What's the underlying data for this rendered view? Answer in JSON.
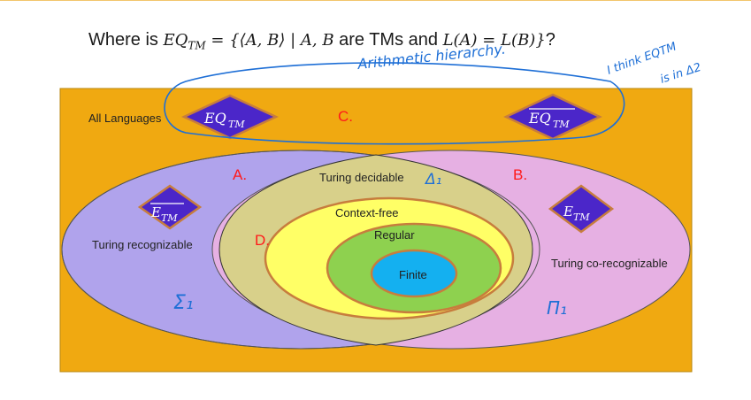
{
  "title": {
    "prefix": "Where is ",
    "math1": "EQ",
    "math1_sub": "TM",
    "math2": " = {⟨A, B⟩ | A, B",
    "mid": " are TMs and ",
    "math3": "L(A) = L(B)}",
    "suffix": "?"
  },
  "regions": {
    "all_languages": "All Languages",
    "turing_recognizable": "Turing recognizable",
    "turing_corecognizable": "Turing co-recognizable",
    "turing_decidable": "Turing decidable",
    "context_free": "Context-free",
    "regular": "Regular",
    "finite": "Finite"
  },
  "letters": {
    "a": "A.",
    "b": "B.",
    "c": "C.",
    "d": "D."
  },
  "diamonds": {
    "eq_tm": {
      "base": "EQ",
      "sub": "TM"
    },
    "eq_tm_complement": {
      "base": "EQ",
      "sub": "TM"
    },
    "e_tm_complement": {
      "base": "E",
      "sub": "TM"
    },
    "e_tm": {
      "base": "E",
      "sub": "TM"
    }
  },
  "annotations": {
    "arithmetic": "Arithmetic hierarchy.",
    "think_line1": "I think EQTM",
    "think_line2": "is in Δ2",
    "delta1": "Δ₁",
    "sigma1": "Σ₁",
    "pi1": "Π₁"
  },
  "colors": {
    "all_languages": "#f0a911",
    "recognizable": "#b0a3ec",
    "corecognizable": "#e6b0e3",
    "decidable": "#d8d08a",
    "context_free": "#ffff66",
    "regular": "#8ed14f",
    "finite": "#14b0f0",
    "diamond_fill": "#4b26c9",
    "diamond_stroke": "#c77d3d",
    "label_red": "#ff1a1a",
    "ink_blue": "#1e6fd6"
  }
}
